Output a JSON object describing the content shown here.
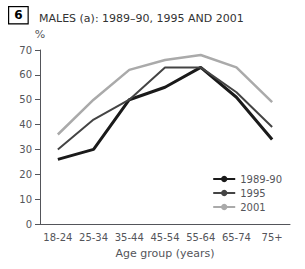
{
  "chart_data": {
    "type": "line",
    "title": "MALES (a): 1989–90, 1995 AND 2001",
    "annotations": [
      "6"
    ],
    "x_label": "Age group (years)",
    "y_label": "%",
    "categories": [
      "18-24",
      "25-34",
      "35-44",
      "45-54",
      "55-64",
      "65-74",
      "75+"
    ],
    "series": [
      {
        "name": "1989-90",
        "color": "#1a1a1a",
        "values": [
          26,
          30,
          50,
          55,
          63,
          51,
          34
        ]
      },
      {
        "name": "1995",
        "color": "#444444",
        "values": [
          30,
          42,
          50,
          63,
          63,
          53,
          39
        ]
      },
      {
        "name": "2001",
        "color": "#aaaaaa",
        "values": [
          36,
          50,
          62,
          66,
          68,
          63,
          49
        ]
      }
    ],
    "ylim": [
      0,
      70
    ],
    "yticks": [
      0,
      10,
      20,
      30,
      40,
      50,
      60,
      70
    ],
    "grid": false,
    "legend": "lower right"
  }
}
